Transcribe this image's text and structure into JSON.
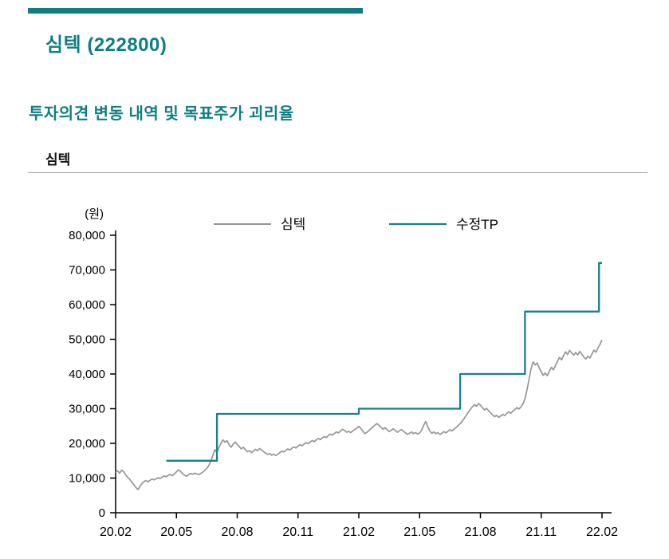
{
  "page": {
    "title": "심텍 (222800)",
    "subtitle": "투자의견 변동 내역 및 목표주가 괴리율",
    "section_label": "심텍",
    "accent_color": "#0f7e84"
  },
  "chart_data": {
    "type": "line",
    "title": "심텍",
    "xlabel": "",
    "ylabel": "(원)",
    "ylim": [
      0,
      80000
    ],
    "y_axis": {
      "min": 0,
      "max": 80000,
      "tick_step": 10000,
      "unit_label": "(원)",
      "tick_labels": [
        "0",
        "10,000",
        "20,000",
        "30,000",
        "40,000",
        "50,000",
        "60,000",
        "70,000",
        "80,000"
      ]
    },
    "x_axis": {
      "tick_labels": [
        "20.02",
        "20.05",
        "20.08",
        "20.11",
        "21.02",
        "21.05",
        "21.08",
        "21.11",
        "22.02"
      ],
      "tick_positions_months": [
        0,
        3,
        6,
        9,
        12,
        15,
        18,
        21,
        24
      ],
      "range_months": [
        0,
        24
      ]
    },
    "legend": [
      {
        "label": "심텍",
        "color": "#969696"
      },
      {
        "label": "수정TP",
        "color": "#187f8c"
      }
    ],
    "series": [
      {
        "name": "심텍",
        "kind": "price",
        "color": "#969696",
        "width": 1.7,
        "x_start": 0,
        "x_step": 0.1,
        "values": [
          11600,
          12100,
          11400,
          12300,
          11800,
          10900,
          10200,
          9600,
          8800,
          8100,
          7300,
          6700,
          7600,
          8400,
          9000,
          9300,
          8900,
          9400,
          9700,
          9500,
          9800,
          10100,
          9900,
          10300,
          10600,
          10400,
          10800,
          11000,
          10700,
          11200,
          11800,
          12400,
          11900,
          11300,
          10800,
          10500,
          11000,
          11300,
          11100,
          11400,
          11200,
          11000,
          11300,
          11700,
          12200,
          12800,
          13600,
          15000,
          16500,
          18200,
          17400,
          18800,
          20100,
          21000,
          20300,
          20800,
          19600,
          18900,
          19800,
          20400,
          19700,
          19100,
          18400,
          18900,
          18200,
          17600,
          17900,
          17300,
          17800,
          18300,
          17900,
          18500,
          18100,
          17600,
          17200,
          16800,
          17100,
          16600,
          16900,
          16500,
          16800,
          17300,
          17800,
          17500,
          18000,
          18400,
          18100,
          18600,
          19000,
          18700,
          19200,
          19600,
          19300,
          19800,
          20200,
          19900,
          20400,
          20800,
          20500,
          21000,
          21400,
          21100,
          21600,
          22000,
          21700,
          22300,
          22700,
          22400,
          22900,
          23300,
          23000,
          23600,
          24100,
          23700,
          23200,
          23500,
          23100,
          23600,
          24000,
          24400,
          24900,
          24300,
          23500,
          22800,
          23200,
          23700,
          24300,
          24800,
          25300,
          25700,
          25200,
          24600,
          24100,
          24500,
          23900,
          23400,
          23800,
          24200,
          23700,
          23200,
          23600,
          24000,
          23500,
          23000,
          22600,
          22900,
          23300,
          22800,
          23100,
          22700,
          23000,
          23800,
          25200,
          26300,
          24800,
          23600,
          22900,
          23300,
          22800,
          23100,
          22600,
          22900,
          23400,
          23000,
          23500,
          23900,
          23600,
          24100,
          24600,
          25100,
          25700,
          26400,
          27200,
          28100,
          29000,
          29800,
          30500,
          31200,
          30700,
          31500,
          31000,
          30300,
          29600,
          30100,
          29400,
          28800,
          28200,
          27700,
          28100,
          27500,
          27900,
          28400,
          28000,
          28600,
          29100,
          28700,
          29300,
          29800,
          30300,
          29900,
          30500,
          31400,
          33000,
          35500,
          38500,
          41500,
          43500,
          42600,
          43200,
          41800,
          40600,
          39600,
          40300,
          39500,
          40800,
          41900,
          41200,
          42400,
          43600,
          44800,
          44100,
          45300,
          46400,
          45600,
          46800,
          46100,
          45400,
          46200,
          45500,
          46500,
          45800,
          44900,
          44300,
          45100,
          44600,
          45700,
          46900,
          46300,
          47500,
          48600,
          49800
        ]
      },
      {
        "name": "수정TP",
        "kind": "step",
        "color": "#187f8c",
        "width": 2.3,
        "points": [
          [
            2.5,
            15000
          ],
          [
            5.0,
            15000
          ],
          [
            5.0,
            28500
          ],
          [
            12.0,
            28500
          ],
          [
            12.0,
            30000
          ],
          [
            17.0,
            30000
          ],
          [
            17.0,
            40000
          ],
          [
            20.2,
            40000
          ],
          [
            20.2,
            58000
          ],
          [
            23.85,
            58000
          ],
          [
            23.85,
            72000
          ],
          [
            24.0,
            72000
          ]
        ]
      }
    ]
  }
}
